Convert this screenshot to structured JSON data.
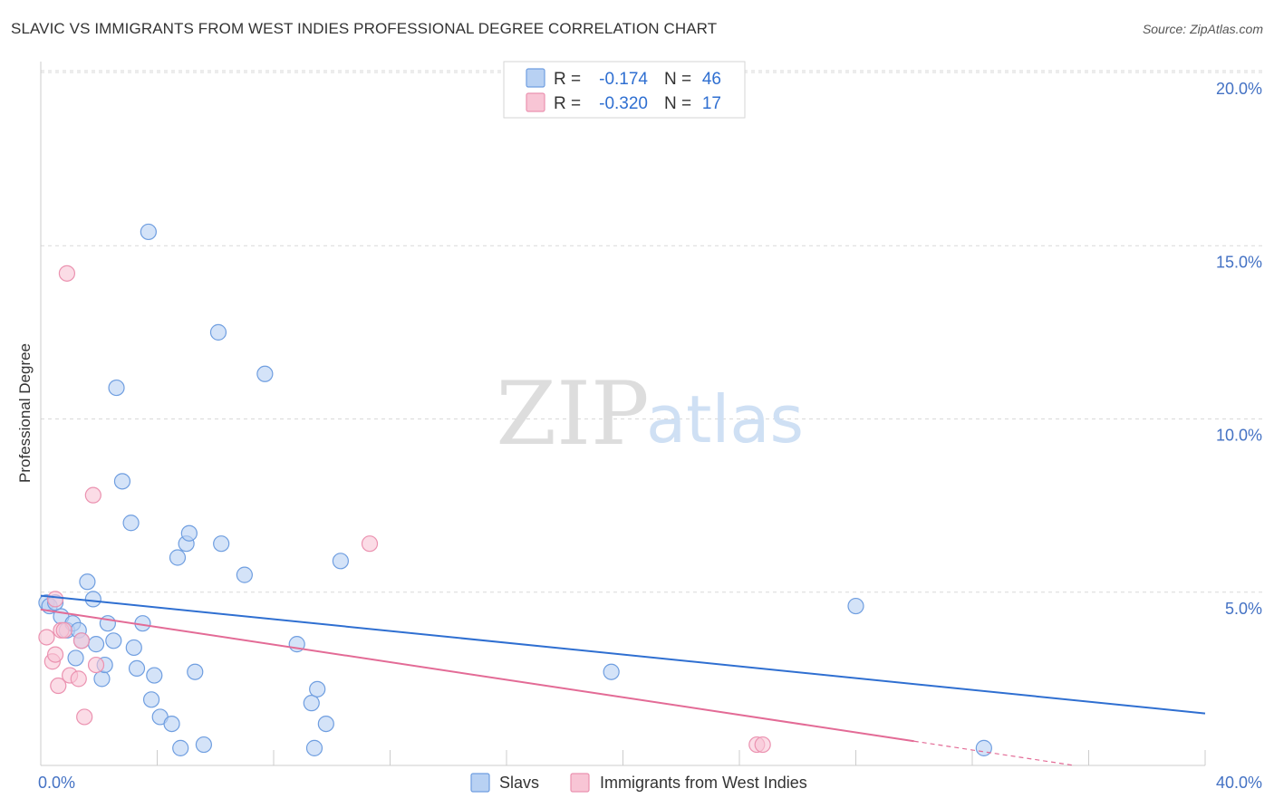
{
  "title": "SLAVIC VS IMMIGRANTS FROM WEST INDIES PROFESSIONAL DEGREE CORRELATION CHART",
  "source": "Source: ZipAtlas.com",
  "watermark": {
    "zip": "ZIP",
    "atlas": "atlas"
  },
  "colors": {
    "blue": "#2f6fd1",
    "blue_fill": "#b8d1f3",
    "blue_stroke": "#6f9ee0",
    "pink": "#e36b96",
    "pink_fill": "#f8c5d5",
    "pink_stroke": "#eb92b0",
    "grid": "#d9d9d9",
    "tick_text": "#4472c4"
  },
  "legend": {
    "rows": [
      {
        "r_label": "R =",
        "r_value": "-0.174",
        "n_label": "N =",
        "n_value": "46",
        "series": "slavs"
      },
      {
        "r_label": "R =",
        "r_value": "-0.320",
        "n_label": "N =",
        "n_value": "17",
        "series": "west_indies"
      }
    ]
  },
  "bottom_legend": [
    {
      "label": "Slavs",
      "series": "slavs"
    },
    {
      "label": "Immigrants from West Indies",
      "series": "west_indies"
    }
  ],
  "chart_data": {
    "type": "scatter",
    "title": "SLAVIC VS IMMIGRANTS FROM WEST INDIES PROFESSIONAL DEGREE CORRELATION CHART",
    "xlabel": "",
    "ylabel": "Professional Degree",
    "xlim": [
      0,
      40
    ],
    "ylim": [
      0,
      20
    ],
    "x_tick_labels": [
      {
        "value": 0,
        "label": "0.0%"
      },
      {
        "value": 40,
        "label": "40.0%"
      }
    ],
    "y_tick_labels": [
      {
        "value": 5,
        "label": "5.0%"
      },
      {
        "value": 10,
        "label": "10.0%"
      },
      {
        "value": 15,
        "label": "15.0%"
      },
      {
        "value": 20,
        "label": "20.0%"
      }
    ],
    "series": [
      {
        "name": "Slavs",
        "key": "slavs",
        "points": [
          [
            0.2,
            4.7
          ],
          [
            0.3,
            4.6
          ],
          [
            0.5,
            4.7
          ],
          [
            0.7,
            4.3
          ],
          [
            0.9,
            3.9
          ],
          [
            1.1,
            4.1
          ],
          [
            1.2,
            3.1
          ],
          [
            1.3,
            3.9
          ],
          [
            1.4,
            3.6
          ],
          [
            1.6,
            5.3
          ],
          [
            1.8,
            4.8
          ],
          [
            1.9,
            3.5
          ],
          [
            2.1,
            2.5
          ],
          [
            2.2,
            2.9
          ],
          [
            2.3,
            4.1
          ],
          [
            2.5,
            3.6
          ],
          [
            2.6,
            10.9
          ],
          [
            2.8,
            8.2
          ],
          [
            3.1,
            7.0
          ],
          [
            3.2,
            3.4
          ],
          [
            3.3,
            2.8
          ],
          [
            3.5,
            4.1
          ],
          [
            3.7,
            15.4
          ],
          [
            3.8,
            1.9
          ],
          [
            3.9,
            2.6
          ],
          [
            4.1,
            1.4
          ],
          [
            4.5,
            1.2
          ],
          [
            4.7,
            6.0
          ],
          [
            4.8,
            0.5
          ],
          [
            5.0,
            6.4
          ],
          [
            5.1,
            6.7
          ],
          [
            5.3,
            2.7
          ],
          [
            5.6,
            0.6
          ],
          [
            6.2,
            6.4
          ],
          [
            6.1,
            12.5
          ],
          [
            7.0,
            5.5
          ],
          [
            7.7,
            11.3
          ],
          [
            8.8,
            3.5
          ],
          [
            9.3,
            1.8
          ],
          [
            9.5,
            2.2
          ],
          [
            9.8,
            1.2
          ],
          [
            10.3,
            5.9
          ],
          [
            9.4,
            0.5
          ],
          [
            19.6,
            2.7
          ],
          [
            28.0,
            4.6
          ],
          [
            32.4,
            0.5
          ]
        ],
        "trend": {
          "x": [
            0,
            40
          ],
          "y": [
            4.9,
            1.5
          ]
        }
      },
      {
        "name": "Immigrants from West Indies",
        "key": "west_indies",
        "points": [
          [
            0.2,
            3.7
          ],
          [
            0.4,
            3.0
          ],
          [
            0.5,
            3.2
          ],
          [
            0.6,
            2.3
          ],
          [
            0.7,
            3.9
          ],
          [
            0.9,
            14.2
          ],
          [
            1.0,
            2.6
          ],
          [
            1.3,
            2.5
          ],
          [
            1.4,
            3.6
          ],
          [
            1.5,
            1.4
          ],
          [
            1.8,
            7.8
          ],
          [
            1.9,
            2.9
          ],
          [
            11.3,
            6.4
          ],
          [
            24.6,
            0.6
          ],
          [
            24.8,
            0.6
          ],
          [
            0.5,
            4.8
          ],
          [
            0.8,
            3.9
          ]
        ],
        "trend": {
          "x": [
            0,
            30
          ],
          "y": [
            4.5,
            0.7
          ]
        },
        "trend_extension": {
          "x": [
            30,
            35.5
          ],
          "y": [
            0.7,
            0.0
          ]
        }
      }
    ],
    "legend_position": "top-center",
    "grid": true
  }
}
